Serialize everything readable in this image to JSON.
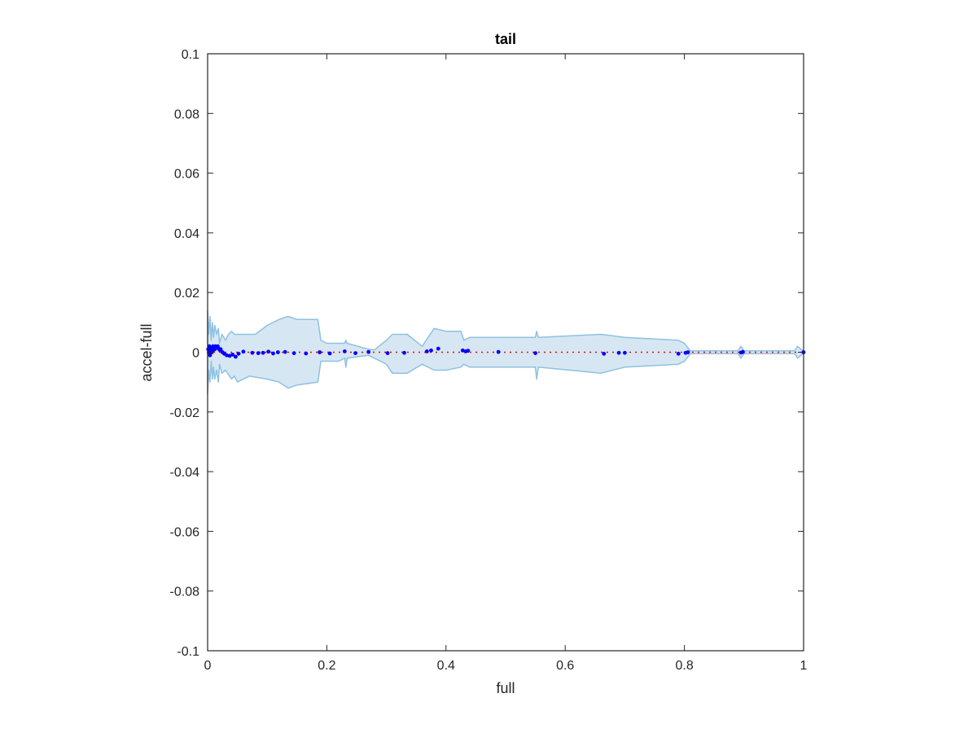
{
  "chart_data": {
    "type": "scatter",
    "title": "tail",
    "xlabel": "full",
    "ylabel": "accel-full",
    "xlim": [
      0,
      1
    ],
    "ylim": [
      -0.1,
      0.1
    ],
    "xticks": [
      0,
      0.2,
      0.4,
      0.6,
      0.8,
      1
    ],
    "xtick_labels": [
      "0",
      "0.2",
      "0.4",
      "0.6",
      "0.8",
      "1"
    ],
    "yticks": [
      0.1,
      0.08,
      0.06,
      0.04,
      0.02,
      0,
      -0.02,
      -0.04,
      -0.06,
      -0.08,
      -0.1
    ],
    "ytick_labels": [
      "0.1",
      "0.08",
      "0.06",
      "0.04",
      "0.02",
      "0",
      "-0.02",
      "-0.04",
      "-0.06",
      "-0.08",
      "-0.1"
    ],
    "grid": false,
    "colors": {
      "band_fill": "#d6e7f3",
      "band_edge": "#8fc1e0",
      "points": "#0000ff",
      "reference_line": "#ff0000",
      "axes": "#262626"
    },
    "reference_line": {
      "y": 0,
      "style": "dotted"
    },
    "band": {
      "upper": [
        [
          0,
          0.014
        ],
        [
          0.002,
          0.006
        ],
        [
          0.004,
          0.012
        ],
        [
          0.006,
          0.004
        ],
        [
          0.008,
          0.01
        ],
        [
          0.01,
          0.005
        ],
        [
          0.012,
          0.009
        ],
        [
          0.015,
          0.006
        ],
        [
          0.018,
          0.008
        ],
        [
          0.02,
          0.003
        ],
        [
          0.024,
          0.006
        ],
        [
          0.03,
          0.004
        ],
        [
          0.035,
          0.006
        ],
        [
          0.04,
          0.007
        ],
        [
          0.045,
          0.006
        ],
        [
          0.055,
          0.006
        ],
        [
          0.08,
          0.006
        ],
        [
          0.1,
          0.009
        ],
        [
          0.12,
          0.011
        ],
        [
          0.135,
          0.012
        ],
        [
          0.15,
          0.011
        ],
        [
          0.185,
          0.011
        ],
        [
          0.19,
          0.004
        ],
        [
          0.2,
          0.003
        ],
        [
          0.22,
          0.003
        ],
        [
          0.23,
          0.003
        ],
        [
          0.232,
          0.004
        ],
        [
          0.234,
          0.003
        ],
        [
          0.27,
          0.001
        ],
        [
          0.28,
          0.0008
        ],
        [
          0.3,
          0.004
        ],
        [
          0.31,
          0.006
        ],
        [
          0.335,
          0.006
        ],
        [
          0.36,
          0.002
        ],
        [
          0.38,
          0.008
        ],
        [
          0.4,
          0.007
        ],
        [
          0.425,
          0.007
        ],
        [
          0.43,
          0.004
        ],
        [
          0.44,
          0.005
        ],
        [
          0.55,
          0.005
        ],
        [
          0.552,
          0.007
        ],
        [
          0.555,
          0.005
        ],
        [
          0.66,
          0.006
        ],
        [
          0.7,
          0.005
        ],
        [
          0.79,
          0.004
        ],
        [
          0.8,
          0.003
        ],
        [
          0.81,
          0.0005
        ],
        [
          0.89,
          0.0005
        ],
        [
          0.895,
          0.002
        ],
        [
          0.9,
          0.0005
        ],
        [
          0.985,
          0.0005
        ],
        [
          0.99,
          0.002
        ],
        [
          1,
          0.0003
        ]
      ],
      "lower": [
        [
          0,
          -0.014
        ],
        [
          0.002,
          -0.006
        ],
        [
          0.004,
          -0.01
        ],
        [
          0.006,
          -0.003
        ],
        [
          0.008,
          -0.009
        ],
        [
          0.01,
          -0.005
        ],
        [
          0.012,
          -0.009
        ],
        [
          0.015,
          -0.006
        ],
        [
          0.018,
          -0.01
        ],
        [
          0.02,
          -0.004
        ],
        [
          0.024,
          -0.007
        ],
        [
          0.03,
          -0.006
        ],
        [
          0.04,
          -0.009
        ],
        [
          0.045,
          -0.008
        ],
        [
          0.05,
          -0.01
        ],
        [
          0.07,
          -0.008
        ],
        [
          0.1,
          -0.009
        ],
        [
          0.12,
          -0.01
        ],
        [
          0.135,
          -0.012
        ],
        [
          0.15,
          -0.011
        ],
        [
          0.185,
          -0.01
        ],
        [
          0.19,
          -0.003
        ],
        [
          0.22,
          -0.003
        ],
        [
          0.23,
          -0.002
        ],
        [
          0.232,
          -0.005
        ],
        [
          0.234,
          -0.002
        ],
        [
          0.27,
          -0.001
        ],
        [
          0.3,
          -0.004
        ],
        [
          0.31,
          -0.007
        ],
        [
          0.335,
          -0.007
        ],
        [
          0.36,
          -0.004
        ],
        [
          0.38,
          -0.006
        ],
        [
          0.4,
          -0.006
        ],
        [
          0.425,
          -0.005
        ],
        [
          0.43,
          -0.004
        ],
        [
          0.44,
          -0.005
        ],
        [
          0.55,
          -0.005
        ],
        [
          0.552,
          -0.009
        ],
        [
          0.555,
          -0.005
        ],
        [
          0.66,
          -0.007
        ],
        [
          0.7,
          -0.005
        ],
        [
          0.79,
          -0.004
        ],
        [
          0.8,
          -0.003
        ],
        [
          0.81,
          -0.0005
        ],
        [
          0.89,
          -0.0005
        ],
        [
          0.895,
          -0.002
        ],
        [
          0.9,
          -0.0005
        ],
        [
          0.985,
          -0.0005
        ],
        [
          0.99,
          -0.002
        ],
        [
          1,
          -0.0003
        ]
      ]
    },
    "points": [
      [
        0.001,
        0.001
      ],
      [
        0.002,
        0.0
      ],
      [
        0.003,
        0.002
      ],
      [
        0.004,
        -0.001
      ],
      [
        0.005,
        0.001
      ],
      [
        0.006,
        0.0015
      ],
      [
        0.007,
        0.0
      ],
      [
        0.008,
        0.001
      ],
      [
        0.009,
        0.002
      ],
      [
        0.01,
        0.0008
      ],
      [
        0.011,
        0.0015
      ],
      [
        0.012,
        0.001
      ],
      [
        0.013,
        0.002
      ],
      [
        0.015,
        0.0015
      ],
      [
        0.017,
        0.002
      ],
      [
        0.019,
        0.0012
      ],
      [
        0.02,
        0.0008
      ],
      [
        0.022,
        0.001
      ],
      [
        0.025,
        0.0
      ],
      [
        0.028,
        -0.0005
      ],
      [
        0.032,
        -0.001
      ],
      [
        0.037,
        -0.0012
      ],
      [
        0.042,
        -0.0008
      ],
      [
        0.047,
        -0.0015
      ],
      [
        0.052,
        -0.0005
      ],
      [
        0.06,
        0.0002
      ],
      [
        0.075,
        -0.0002
      ],
      [
        0.085,
        -0.0003
      ],
      [
        0.093,
        -0.0002
      ],
      [
        0.102,
        0.0002
      ],
      [
        0.11,
        -0.0004
      ],
      [
        0.118,
        0.0
      ],
      [
        0.13,
        0.0001
      ],
      [
        0.145,
        -0.0003
      ],
      [
        0.165,
        -0.0004
      ],
      [
        0.188,
        0.0
      ],
      [
        0.205,
        -0.0004
      ],
      [
        0.23,
        0.0003
      ],
      [
        0.248,
        -0.0003
      ],
      [
        0.27,
        0.0001
      ],
      [
        0.302,
        -0.0003
      ],
      [
        0.33,
        -0.0002
      ],
      [
        0.368,
        0.0003
      ],
      [
        0.375,
        0.0006
      ],
      [
        0.387,
        0.0012
      ],
      [
        0.428,
        0.0006
      ],
      [
        0.433,
        0.0003
      ],
      [
        0.437,
        0.0005
      ],
      [
        0.488,
        0.0001
      ],
      [
        0.55,
        -0.0003
      ],
      [
        0.665,
        -0.0005
      ],
      [
        0.69,
        -0.0002
      ],
      [
        0.7,
        -0.0002
      ],
      [
        0.79,
        -0.0005
      ],
      [
        0.802,
        -0.0002
      ],
      [
        0.806,
        0.0
      ],
      [
        0.895,
        -0.0001
      ],
      [
        0.898,
        0.0001
      ],
      [
        1,
        0.0
      ]
    ]
  }
}
